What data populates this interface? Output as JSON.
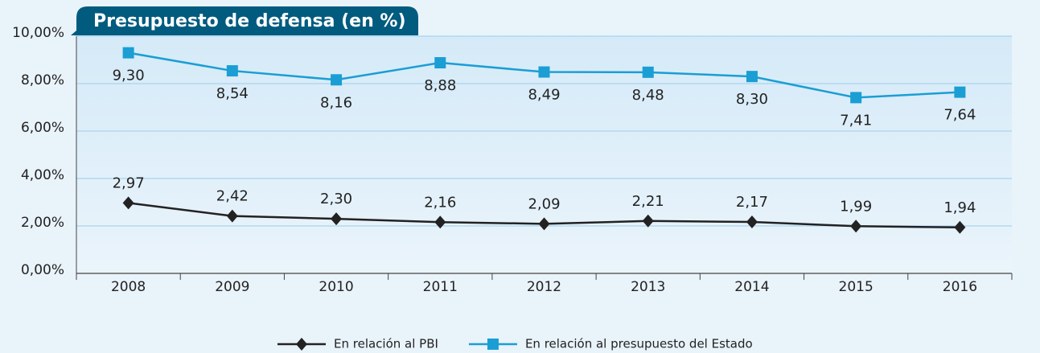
{
  "chart_data": {
    "type": "line",
    "title": "Presupuesto de defensa (en %)",
    "categories": [
      "2008",
      "2009",
      "2010",
      "2011",
      "2012",
      "2013",
      "2014",
      "2015",
      "2016"
    ],
    "series": [
      {
        "name": "En relación al PBI",
        "color": "#222222",
        "marker": "diamond",
        "values": [
          2.97,
          2.42,
          2.3,
          2.16,
          2.09,
          2.21,
          2.17,
          1.99,
          1.94
        ],
        "value_labels": [
          "2,97",
          "2,42",
          "2,30",
          "2,16",
          "2,09",
          "2,21",
          "2,17",
          "1,99",
          "1,94"
        ]
      },
      {
        "name": "En relación al presupuesto del Estado",
        "color": "#1a9ed4",
        "marker": "square",
        "values": [
          9.3,
          8.54,
          8.16,
          8.88,
          8.49,
          8.48,
          8.3,
          7.41,
          7.64
        ],
        "value_labels": [
          "9,30",
          "8,54",
          "8,16",
          "8,88",
          "8,49",
          "8,48",
          "8,30",
          "7,41",
          "7,64"
        ]
      }
    ],
    "ylim": [
      0,
      10
    ],
    "yticks": [
      {
        "value": 0,
        "label": "0,00%"
      },
      {
        "value": 2,
        "label": "2,00%"
      },
      {
        "value": 4,
        "label": "4,00%"
      },
      {
        "value": 6,
        "label": "6,00%"
      },
      {
        "value": 8,
        "label": "8,00%"
      },
      {
        "value": 10,
        "label": "10,00%"
      }
    ],
    "grid": true,
    "legend": "bottom"
  }
}
